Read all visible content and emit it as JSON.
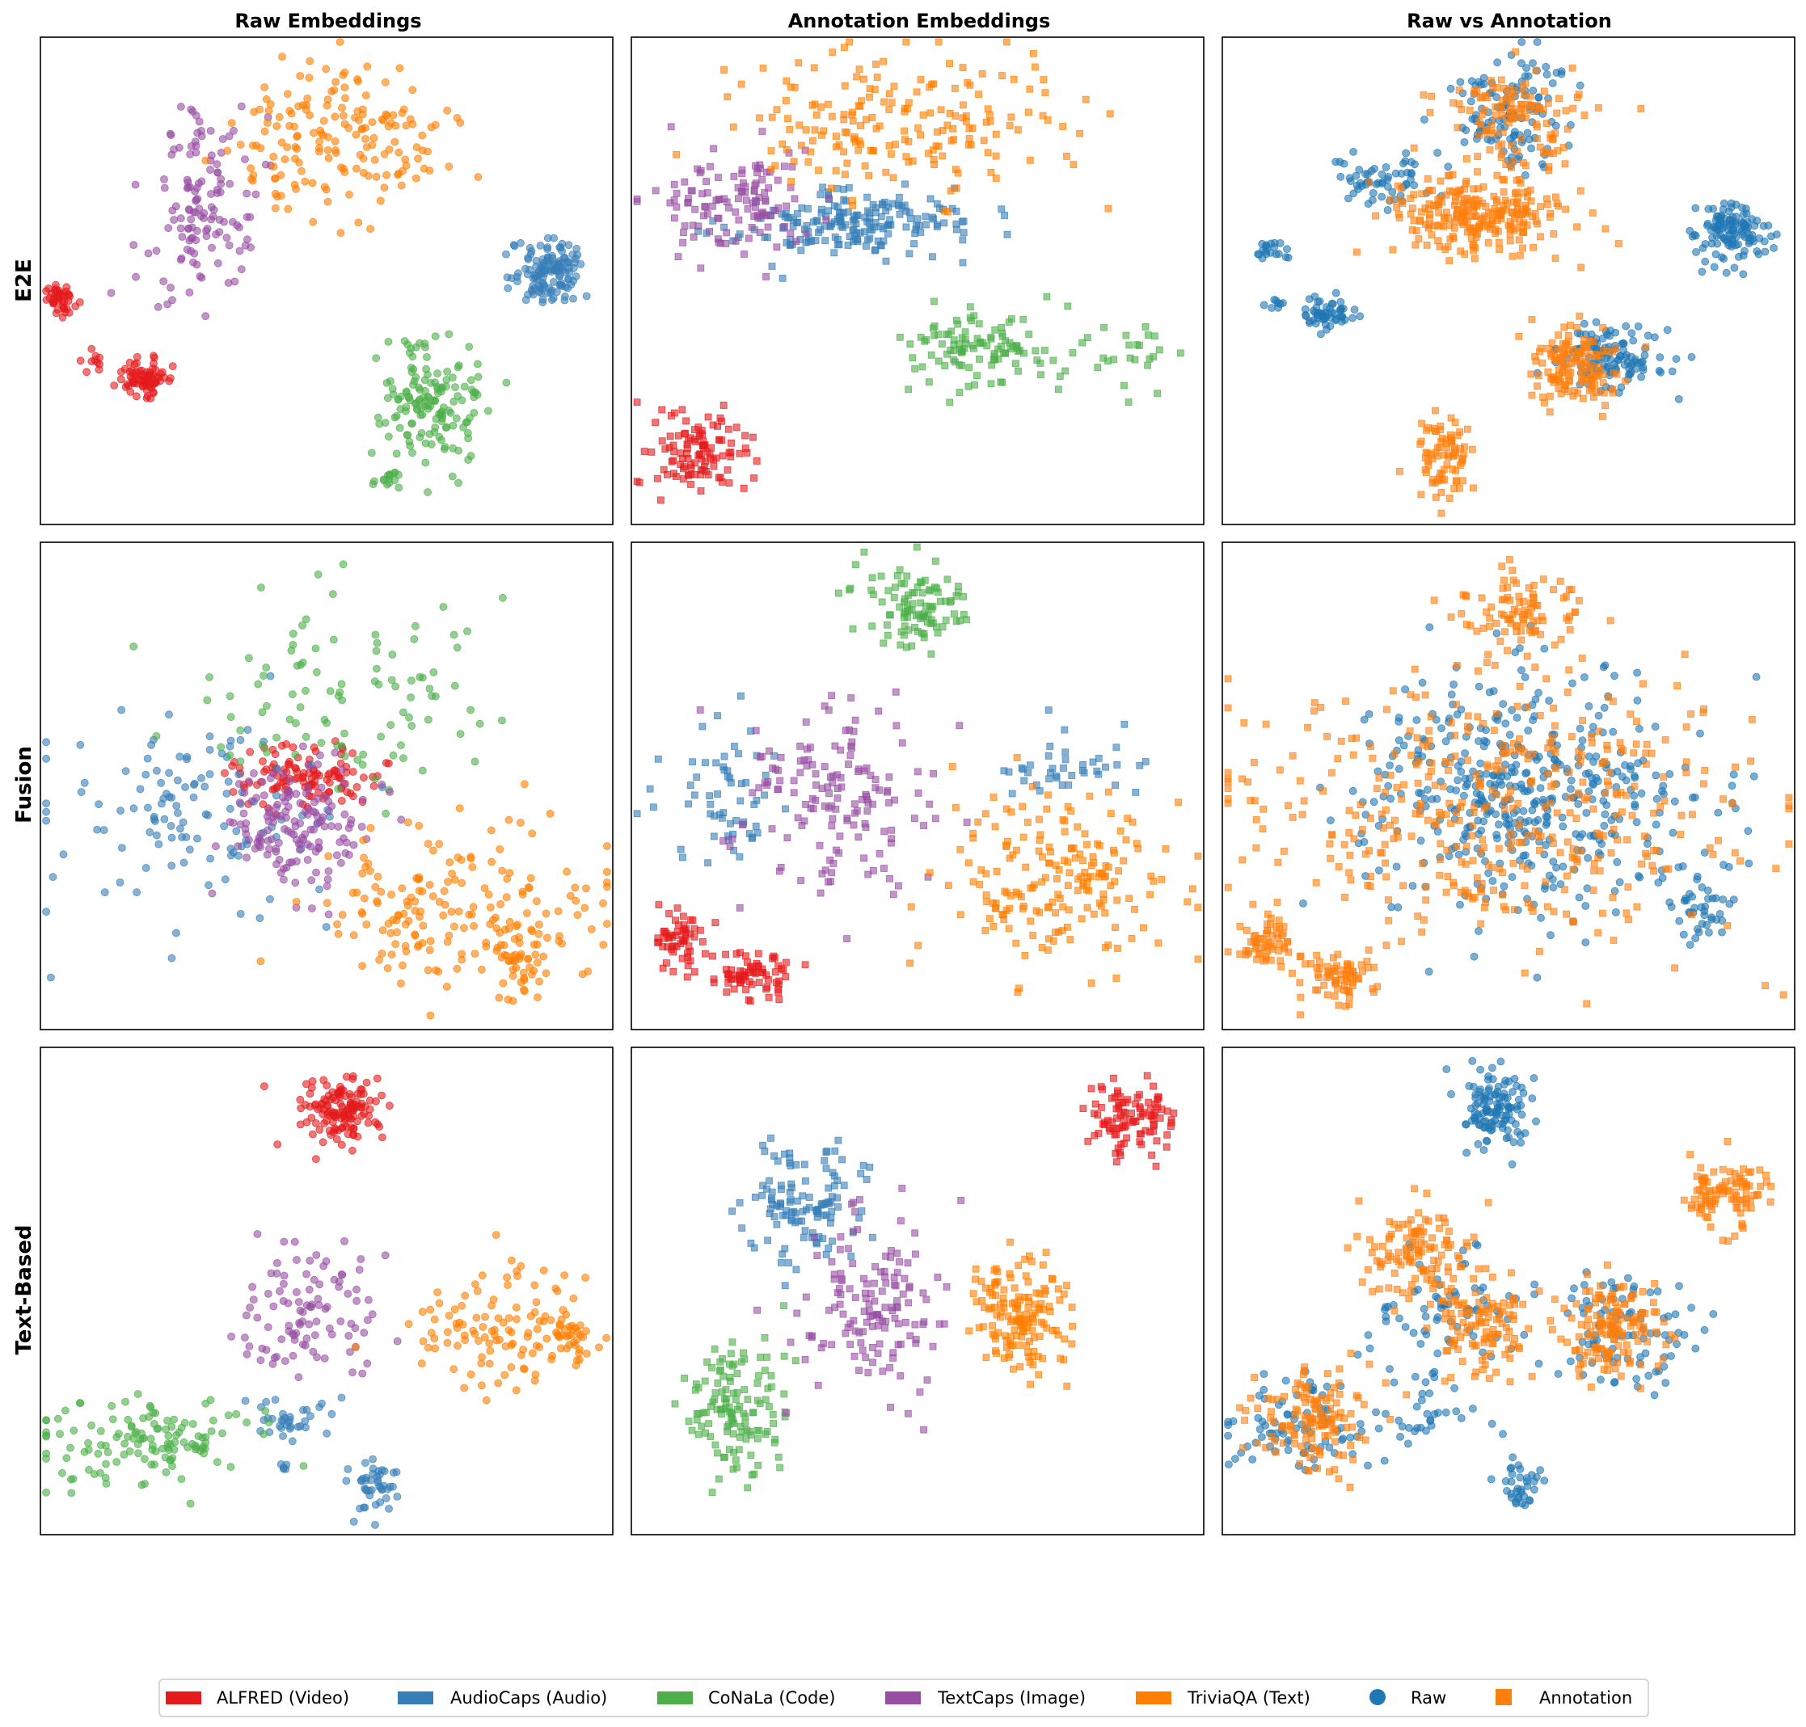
{
  "figure": {
    "column_titles": [
      "Raw Embeddings",
      "Annotation Embeddings",
      "Raw vs Annotation"
    ],
    "row_titles": [
      "E2E",
      "Fusion",
      "Text-Based"
    ]
  },
  "legend": {
    "placement": "bottom-center",
    "entries": [
      {
        "label": "ALFRED (Video)",
        "color": "#e41a1c",
        "kind": "patch"
      },
      {
        "label": "AudioCaps (Audio)",
        "color": "#377eb8",
        "kind": "patch"
      },
      {
        "label": "CoNaLa (Code)",
        "color": "#4daf4a",
        "kind": "patch"
      },
      {
        "label": "TextCaps (Image)",
        "color": "#984ea3",
        "kind": "patch"
      },
      {
        "label": "TriviaQA (Text)",
        "color": "#ff7f00",
        "kind": "patch"
      },
      {
        "label": "Raw",
        "color": "#1f77b4",
        "kind": "circle"
      },
      {
        "label": "Annotation",
        "color": "#ff7f0e",
        "kind": "square"
      }
    ]
  },
  "chart_data": [
    {
      "type": "scatter",
      "row": 0,
      "col": 0,
      "grid": false,
      "axes_ticks": false,
      "marker": "circle",
      "xlim": [
        0,
        100
      ],
      "ylim": [
        0,
        100
      ],
      "series": [
        {
          "name": "ALFRED (Video)",
          "color": "#e41a1c",
          "clusters": [
            {
              "cx": 3.5,
              "cy": 46,
              "sx": 1.3,
              "sy": 1.6,
              "n": 45
            },
            {
              "cx": 9.5,
              "cy": 33,
              "sx": 1.0,
              "sy": 1.0,
              "n": 10
            },
            {
              "cx": 18,
              "cy": 30.5,
              "sx": 2.3,
              "sy": 1.8,
              "n": 80
            }
          ]
        },
        {
          "name": "AudioCaps (Audio)",
          "color": "#377eb8",
          "clusters": [
            {
              "cx": 89,
              "cy": 52,
              "sx": 3.2,
              "sy": 3.5,
              "n": 130
            }
          ]
        },
        {
          "name": "CoNaLa (Code)",
          "color": "#4daf4a",
          "clusters": [
            {
              "cx": 68,
              "cy": 25,
              "sx": 4.2,
              "sy": 6.2,
              "n": 150
            },
            {
              "cx": 61,
              "cy": 9,
              "sx": 1.5,
              "sy": 1.2,
              "n": 15
            }
          ]
        },
        {
          "name": "TextCaps (Image)",
          "color": "#984ea3",
          "clusters": [
            {
              "cx": 28,
              "cy": 66,
              "sx": 4.8,
              "sy": 10,
              "n": 130
            }
          ]
        },
        {
          "name": "TriviaQA (Text)",
          "color": "#ff7f00",
          "clusters": [
            {
              "cx": 52,
              "cy": 79,
              "sx": 10,
              "sy": 7.5,
              "n": 170
            }
          ]
        }
      ]
    },
    {
      "type": "scatter",
      "row": 0,
      "col": 1,
      "grid": false,
      "axes_ticks": false,
      "marker": "square",
      "xlim": [
        0,
        100
      ],
      "ylim": [
        0,
        100
      ],
      "series": [
        {
          "name": "ALFRED (Video)",
          "color": "#e41a1c",
          "clusters": [
            {
              "cx": 11,
              "cy": 14,
              "sx": 4.5,
              "sy": 4.2,
              "n": 110
            }
          ]
        },
        {
          "name": "AudioCaps (Audio)",
          "color": "#377eb8",
          "clusters": [
            {
              "cx": 39,
              "cy": 62,
              "sx": 10,
              "sy": 3.6,
              "n": 190
            }
          ]
        },
        {
          "name": "CoNaLa (Code)",
          "color": "#4daf4a",
          "clusters": [
            {
              "cx": 61,
              "cy": 36,
              "sx": 6.5,
              "sy": 4.2,
              "n": 110
            },
            {
              "cx": 85,
              "cy": 34,
              "sx": 5.5,
              "sy": 4.5,
              "n": 25
            }
          ]
        },
        {
          "name": "TextCaps (Image)",
          "color": "#984ea3",
          "clusters": [
            {
              "cx": 18,
              "cy": 66,
              "sx": 7.5,
              "sy": 4.8,
              "n": 120
            }
          ]
        },
        {
          "name": "TriviaQA (Text)",
          "color": "#ff7f00",
          "clusters": [
            {
              "cx": 45,
              "cy": 83,
              "sx": 15,
              "sy": 7,
              "n": 190
            }
          ]
        }
      ]
    },
    {
      "type": "scatter",
      "row": 0,
      "col": 2,
      "grid": false,
      "axes_ticks": false,
      "marker": "mixed",
      "xlim": [
        0,
        100
      ],
      "ylim": [
        0,
        100
      ],
      "series": [
        {
          "name": "Raw",
          "color": "#1f77b4",
          "marker": "circle",
          "clusters": [
            {
              "cx": 28,
              "cy": 71,
              "sx": 4.6,
              "sy": 2.8,
              "n": 60
            },
            {
              "cx": 8.5,
              "cy": 56,
              "sx": 1.6,
              "sy": 1.0,
              "n": 20
            },
            {
              "cx": 9.5,
              "cy": 45,
              "sx": 0.9,
              "sy": 0.8,
              "n": 8
            },
            {
              "cx": 18,
              "cy": 43,
              "sx": 2.5,
              "sy": 1.8,
              "n": 55
            },
            {
              "cx": 89,
              "cy": 60,
              "sx": 3.2,
              "sy": 3.2,
              "n": 120
            },
            {
              "cx": 50,
              "cy": 84,
              "sx": 6,
              "sy": 6,
              "n": 120
            },
            {
              "cx": 68,
              "cy": 34,
              "sx": 5,
              "sy": 3.5,
              "n": 120
            }
          ]
        },
        {
          "name": "Annotation",
          "color": "#ff7f0e",
          "marker": "square",
          "clusters": [
            {
              "cx": 46,
              "cy": 63,
              "sx": 7.5,
              "sy": 4.2,
              "n": 260
            },
            {
              "cx": 51,
              "cy": 84,
              "sx": 5.5,
              "sy": 5,
              "n": 120
            },
            {
              "cx": 62,
              "cy": 33,
              "sx": 3.8,
              "sy": 3.5,
              "n": 140
            },
            {
              "cx": 39,
              "cy": 14,
              "sx": 2.2,
              "sy": 4.5,
              "n": 80
            }
          ]
        }
      ]
    },
    {
      "type": "scatter",
      "row": 1,
      "col": 0,
      "grid": false,
      "axes_ticks": false,
      "marker": "circle",
      "xlim": [
        0,
        100
      ],
      "ylim": [
        0,
        100
      ],
      "series": [
        {
          "name": "ALFRED (Video)",
          "color": "#e41a1c",
          "clusters": [
            {
              "cx": 46,
              "cy": 52,
              "sx": 7,
              "sy": 3,
              "n": 120
            }
          ]
        },
        {
          "name": "AudioCaps (Audio)",
          "color": "#377eb8",
          "clusters": [
            {
              "cx": 28,
              "cy": 46,
              "sx": 13,
              "sy": 11,
              "n": 120
            }
          ]
        },
        {
          "name": "CoNaLa (Code)",
          "color": "#4daf4a",
          "clusters": [
            {
              "cx": 55,
              "cy": 70,
              "sx": 12,
              "sy": 10,
              "n": 100
            }
          ]
        },
        {
          "name": "TextCaps (Image)",
          "color": "#984ea3",
          "clusters": [
            {
              "cx": 45,
              "cy": 42,
              "sx": 6.5,
              "sy": 6.5,
              "n": 150
            }
          ]
        },
        {
          "name": "TriviaQA (Text)",
          "color": "#ff7f00",
          "clusters": [
            {
              "cx": 72,
              "cy": 25,
              "sx": 13,
              "sy": 9,
              "n": 180
            },
            {
              "cx": 84,
              "cy": 15,
              "sx": 2.2,
              "sy": 4,
              "n": 40
            }
          ]
        }
      ]
    },
    {
      "type": "scatter",
      "row": 1,
      "col": 1,
      "grid": false,
      "axes_ticks": false,
      "marker": "square",
      "xlim": [
        0,
        100
      ],
      "ylim": [
        0,
        100
      ],
      "series": [
        {
          "name": "ALFRED (Video)",
          "color": "#e41a1c",
          "clusters": [
            {
              "cx": 8.5,
              "cy": 18,
              "sx": 2.6,
              "sy": 2.5,
              "n": 55
            },
            {
              "cx": 21,
              "cy": 11,
              "sx": 4,
              "sy": 2.5,
              "n": 75
            }
          ]
        },
        {
          "name": "AudioCaps (Audio)",
          "color": "#377eb8",
          "clusters": [
            {
              "cx": 17,
              "cy": 48,
              "sx": 5.5,
              "sy": 9,
              "n": 60
            },
            {
              "cx": 78,
              "cy": 55,
              "sx": 7.5,
              "sy": 4,
              "n": 40
            }
          ]
        },
        {
          "name": "CoNaLa (Code)",
          "color": "#4daf4a",
          "clusters": [
            {
              "cx": 49,
              "cy": 86,
              "sx": 5,
              "sy": 4,
              "n": 100
            }
          ]
        },
        {
          "name": "TextCaps (Image)",
          "color": "#984ea3",
          "clusters": [
            {
              "cx": 36,
              "cy": 48,
              "sx": 8.5,
              "sy": 10,
              "n": 150
            }
          ]
        },
        {
          "name": "TriviaQA (Text)",
          "color": "#ff7f00",
          "clusters": [
            {
              "cx": 74,
              "cy": 30,
              "sx": 10,
              "sy": 9,
              "n": 190
            }
          ]
        }
      ]
    },
    {
      "type": "scatter",
      "row": 1,
      "col": 2,
      "grid": false,
      "axes_ticks": false,
      "marker": "mixed",
      "xlim": [
        0,
        100
      ],
      "ylim": [
        0,
        100
      ],
      "series": [
        {
          "name": "Raw",
          "color": "#1f77b4",
          "marker": "circle",
          "clusters": [
            {
              "cx": 52,
              "cy": 48,
              "sx": 14,
              "sy": 12,
              "n": 450
            },
            {
              "cx": 84,
              "cy": 25,
              "sx": 3,
              "sy": 3.5,
              "n": 40
            }
          ]
        },
        {
          "name": "Annotation",
          "color": "#ff7f0e",
          "marker": "square",
          "clusters": [
            {
              "cx": 50,
              "cy": 46,
              "sx": 22,
              "sy": 14,
              "n": 420
            },
            {
              "cx": 51,
              "cy": 86,
              "sx": 5,
              "sy": 4,
              "n": 90
            },
            {
              "cx": 8.5,
              "cy": 18,
              "sx": 2.6,
              "sy": 2.5,
              "n": 55
            },
            {
              "cx": 21,
              "cy": 11,
              "sx": 4,
              "sy": 2.5,
              "n": 75
            }
          ]
        }
      ]
    },
    {
      "type": "scatter",
      "row": 2,
      "col": 0,
      "grid": false,
      "axes_ticks": false,
      "marker": "circle",
      "xlim": [
        0,
        100
      ],
      "ylim": [
        0,
        100
      ],
      "series": [
        {
          "name": "ALFRED (Video)",
          "color": "#e41a1c",
          "clusters": [
            {
              "cx": 52,
              "cy": 87,
              "sx": 3.8,
              "sy": 3.8,
              "n": 140
            }
          ]
        },
        {
          "name": "AudioCaps (Audio)",
          "color": "#377eb8",
          "clusters": [
            {
              "cx": 43,
              "cy": 24,
              "sx": 4,
              "sy": 2,
              "n": 35
            },
            {
              "cx": 58,
              "cy": 10,
              "sx": 2.4,
              "sy": 2.8,
              "n": 45
            },
            {
              "cx": 42.5,
              "cy": 14,
              "sx": 0.3,
              "sy": 0.3,
              "n": 5
            }
          ]
        },
        {
          "name": "CoNaLa (Code)",
          "color": "#4daf4a",
          "clusters": [
            {
              "cx": 18,
              "cy": 19,
              "sx": 10,
              "sy": 4.5,
              "n": 130
            }
          ]
        },
        {
          "name": "TextCaps (Image)",
          "color": "#984ea3",
          "clusters": [
            {
              "cx": 47,
              "cy": 45,
              "sx": 7,
              "sy": 7,
              "n": 100
            }
          ]
        },
        {
          "name": "TriviaQA (Text)",
          "color": "#ff7f00",
          "clusters": [
            {
              "cx": 79,
              "cy": 43,
              "sx": 8,
              "sy": 6,
              "n": 110
            },
            {
              "cx": 93,
              "cy": 40,
              "sx": 1.8,
              "sy": 2.5,
              "n": 30
            }
          ]
        }
      ]
    },
    {
      "type": "scatter",
      "row": 2,
      "col": 1,
      "grid": false,
      "axes_ticks": false,
      "marker": "square",
      "xlim": [
        0,
        100
      ],
      "ylim": [
        0,
        100
      ],
      "series": [
        {
          "name": "ALFRED (Video)",
          "color": "#e41a1c",
          "clusters": [
            {
              "cx": 87,
              "cy": 85,
              "sx": 4,
              "sy": 3.5,
              "n": 100
            }
          ]
        },
        {
          "name": "AudioCaps (Audio)",
          "color": "#377eb8",
          "clusters": [
            {
              "cx": 30,
              "cy": 68,
              "sx": 4.8,
              "sy": 6,
              "n": 120
            }
          ]
        },
        {
          "name": "CoNaLa (Code)",
          "color": "#4daf4a",
          "clusters": [
            {
              "cx": 18,
              "cy": 25,
              "sx": 4.5,
              "sy": 7.5,
              "n": 130
            }
          ]
        },
        {
          "name": "TextCaps (Image)",
          "color": "#984ea3",
          "clusters": [
            {
              "cx": 42,
              "cy": 48,
              "sx": 6,
              "sy": 10,
              "n": 140
            }
          ]
        },
        {
          "name": "TriviaQA (Text)",
          "color": "#ff7f00",
          "clusters": [
            {
              "cx": 68,
              "cy": 45,
              "sx": 4,
              "sy": 6,
              "n": 150
            }
          ]
        }
      ]
    },
    {
      "type": "scatter",
      "row": 2,
      "col": 2,
      "grid": false,
      "axes_ticks": false,
      "marker": "mixed",
      "xlim": [
        0,
        100
      ],
      "ylim": [
        0,
        100
      ],
      "series": [
        {
          "name": "Raw",
          "color": "#1f77b4",
          "marker": "circle",
          "clusters": [
            {
              "cx": 48,
              "cy": 87,
              "sx": 3.2,
              "sy": 4,
              "n": 120
            },
            {
              "cx": 14,
              "cy": 22,
              "sx": 7.5,
              "sy": 4.5,
              "n": 90
            },
            {
              "cx": 43,
              "cy": 45,
              "sx": 8,
              "sy": 8,
              "n": 80
            },
            {
              "cx": 70,
              "cy": 42,
              "sx": 6,
              "sy": 6,
              "n": 90
            },
            {
              "cx": 52,
              "cy": 10,
              "sx": 2,
              "sy": 3,
              "n": 35
            },
            {
              "cx": 38,
              "cy": 24,
              "sx": 5,
              "sy": 2,
              "n": 25
            }
          ]
        },
        {
          "name": "Annotation",
          "color": "#ff7f0e",
          "marker": "square",
          "clusters": [
            {
              "cx": 88,
              "cy": 70,
              "sx": 4,
              "sy": 3.5,
              "n": 100
            },
            {
              "cx": 35,
              "cy": 58,
              "sx": 5,
              "sy": 5,
              "n": 110
            },
            {
              "cx": 45,
              "cy": 43,
              "sx": 5,
              "sy": 6,
              "n": 120
            },
            {
              "cx": 16,
              "cy": 24,
              "sx": 5,
              "sy": 6,
              "n": 130
            },
            {
              "cx": 68,
              "cy": 42,
              "sx": 4.5,
              "sy": 5,
              "n": 140
            }
          ]
        }
      ]
    }
  ]
}
